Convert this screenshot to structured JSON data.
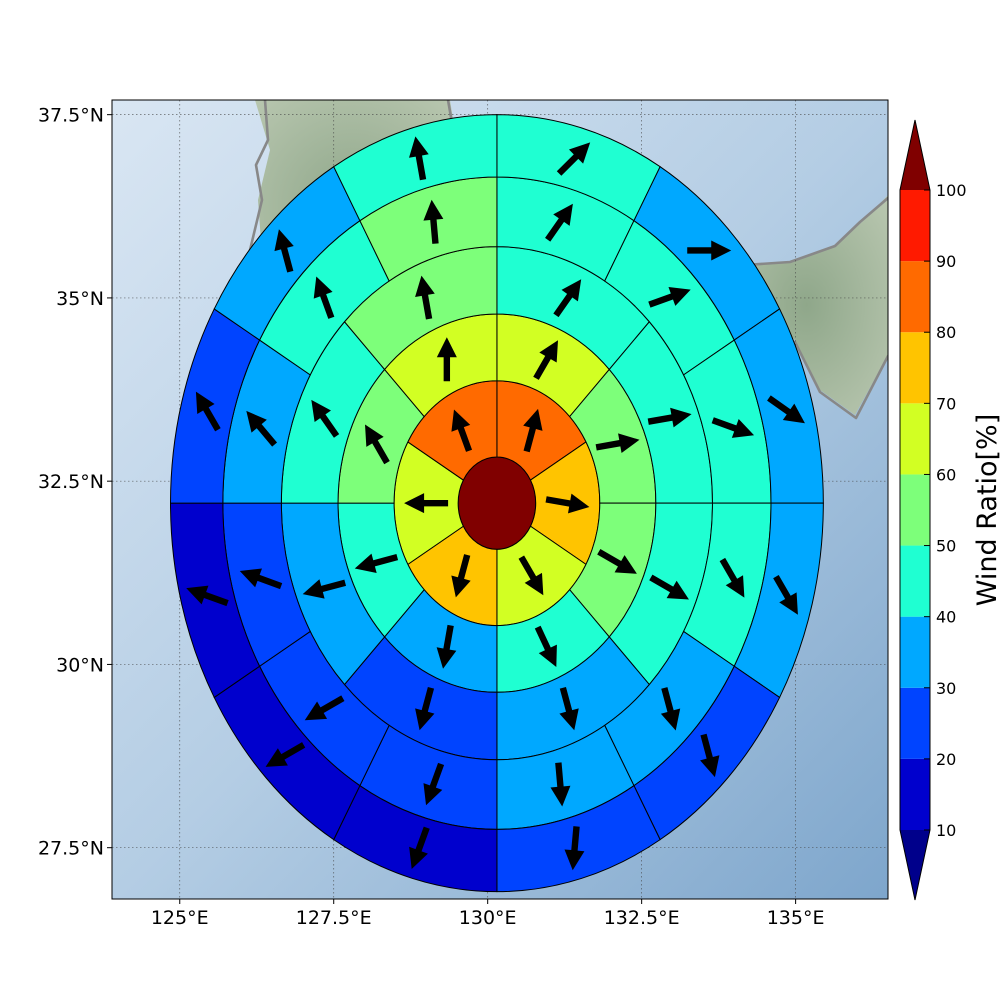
{
  "chart_data": {
    "type": "polar-sector-map",
    "map": {
      "lon_range": [
        123.9,
        136.5
      ],
      "lat_range": [
        26.8,
        37.7
      ],
      "lon_ticks": [
        125,
        127.5,
        130,
        132.5,
        135
      ],
      "lat_ticks": [
        27.5,
        30,
        32.5,
        35,
        37.5
      ],
      "lon_tick_labels": [
        "125°E",
        "127.5°E",
        "130°E",
        "132.5°E",
        "135°E"
      ],
      "lat_tick_labels": [
        "27.5°N",
        "30°N",
        "32.5°N",
        "35°N",
        "37.5°N"
      ],
      "grid": true
    },
    "center": {
      "lon": 130.15,
      "lat": 32.2
    },
    "ring_radius_deg": [
      0.63,
      1.67,
      2.58,
      3.5,
      4.45,
      5.3
    ],
    "sectors_per_ring": [
      1,
      6,
      8,
      8,
      12,
      12
    ],
    "colorbar": {
      "label": "Wind Ratio[%]",
      "boundaries": [
        10,
        20,
        30,
        40,
        50,
        60,
        70,
        80,
        90,
        100
      ],
      "tick_labels": [
        "10",
        "20",
        "30",
        "40",
        "50",
        "60",
        "70",
        "80",
        "90",
        "100"
      ],
      "colors": [
        "#0000cd",
        "#0044ff",
        "#00a8ff",
        "#1fffd2",
        "#7dff7a",
        "#d2ff23",
        "#ffc400",
        "#ff6a00",
        "#ff1a00"
      ],
      "under_color": "#00008b",
      "over_color": "#800000",
      "extend": "both"
    },
    "wind_ratio_by_ring_clockwise_from_north": [
      [
        100
      ],
      [
        80,
        70,
        60,
        70,
        60,
        80
      ],
      [
        60,
        50,
        50,
        40,
        30,
        40,
        50,
        60
      ],
      [
        40,
        40,
        40,
        30,
        20,
        30,
        40,
        50
      ],
      [
        40,
        40,
        40,
        40,
        30,
        30,
        20,
        20,
        20,
        30,
        40,
        50
      ],
      [
        40,
        30,
        30,
        30,
        20,
        20,
        10,
        10,
        10,
        20,
        30,
        40
      ]
    ],
    "wind_direction_deg_by_ring_clockwise_from_north": [
      [],
      [
        15,
        100,
        150,
        195,
        270,
        340
      ],
      [
        30,
        80,
        120,
        155,
        190,
        255,
        330,
        0
      ],
      [
        35,
        80,
        120,
        165,
        195,
        255,
        325,
        350
      ],
      [
        35,
        70,
        110,
        150,
        165,
        175,
        200,
        240,
        290,
        320,
        340,
        355
      ],
      [
        45,
        90,
        125,
        150,
        165,
        185,
        200,
        240,
        290,
        330,
        345,
        350
      ]
    ]
  }
}
